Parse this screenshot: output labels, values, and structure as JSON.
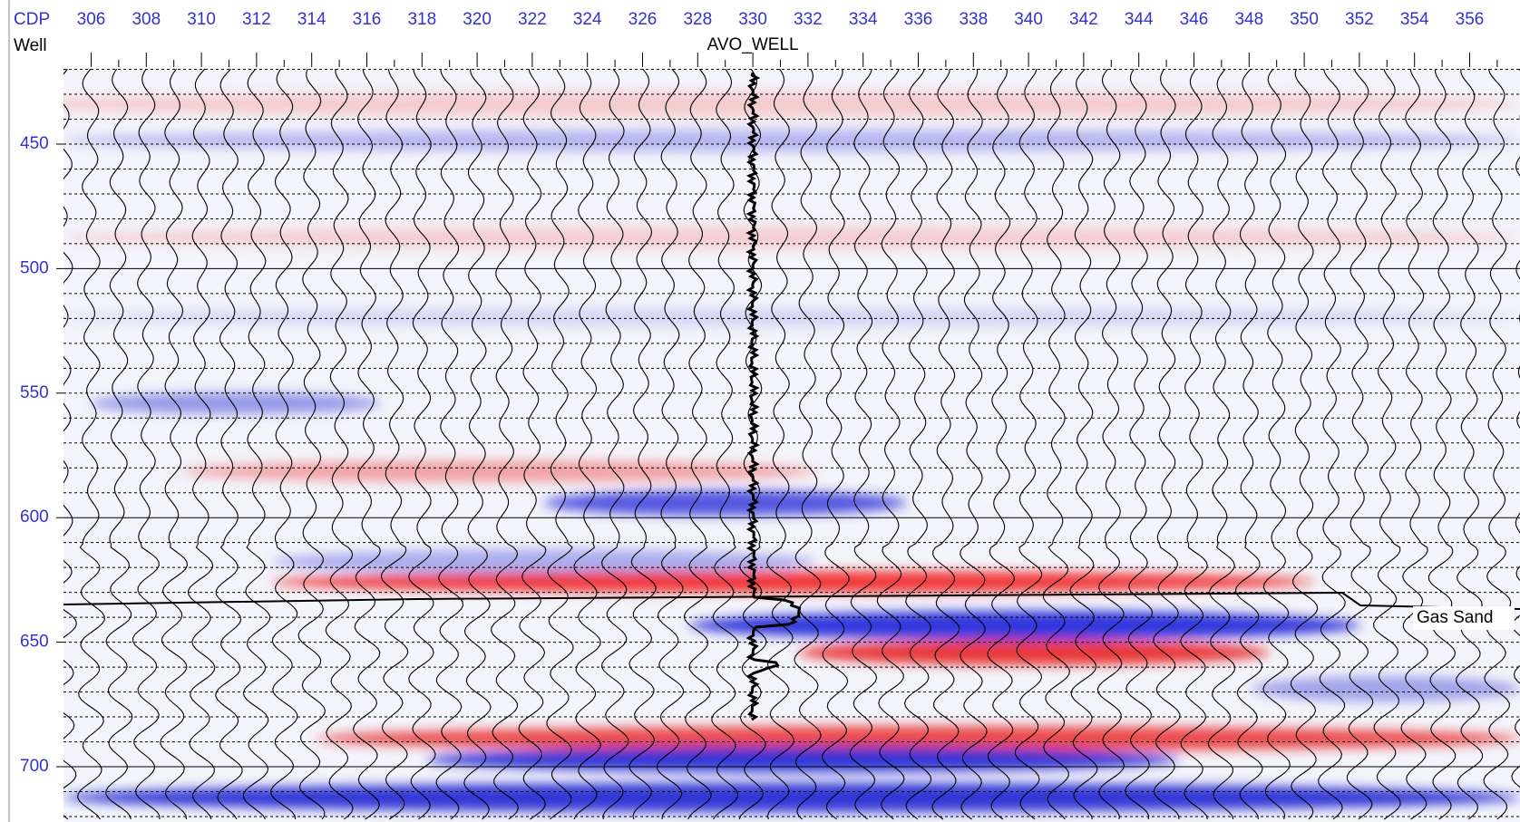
{
  "header": {
    "cdp_label": "CDP",
    "well_label": "Well",
    "cdp_ticks": [
      306,
      308,
      310,
      312,
      314,
      316,
      318,
      320,
      322,
      324,
      326,
      328,
      330,
      332,
      334,
      336,
      338,
      340,
      342,
      344,
      346,
      348,
      350,
      352,
      354,
      356
    ]
  },
  "well_name": "AVO_WELL",
  "time_ticks": [
    450,
    500,
    550,
    600,
    650,
    700
  ],
  "horizon_label": "Gas Sand"
}
